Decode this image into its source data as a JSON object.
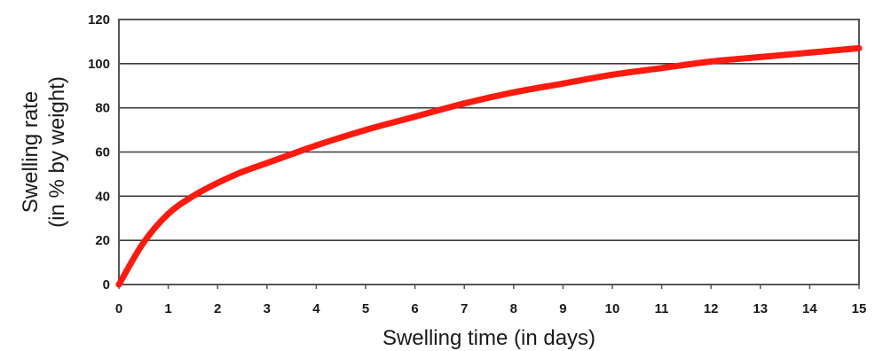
{
  "chart_data": {
    "type": "line",
    "title": "",
    "xlabel": "Swelling time (in days)",
    "ylabel_line1": "Swelling rate",
    "ylabel_line2": "(in % by weight)",
    "xlim": [
      0,
      15
    ],
    "ylim": [
      0,
      120
    ],
    "xticks": [
      "0",
      "1",
      "2",
      "3",
      "4",
      "5",
      "6",
      "7",
      "8",
      "9",
      "10",
      "11",
      "12",
      "13",
      "14",
      "15"
    ],
    "yticks": [
      "0",
      "20",
      "40",
      "60",
      "80",
      "100",
      "120"
    ],
    "grid": "horizontal",
    "series": [
      {
        "color": "#ff1a0f",
        "x": [
          0,
          0.5,
          1,
          1.5,
          2,
          2.5,
          3,
          3.5,
          4,
          5,
          6,
          7,
          8,
          9,
          10,
          11,
          12,
          13,
          14,
          15
        ],
        "y": [
          0,
          19,
          32,
          40,
          46,
          51,
          55,
          59,
          63,
          70,
          76,
          82,
          87,
          91,
          95,
          98,
          101,
          103,
          105,
          107
        ]
      }
    ]
  }
}
